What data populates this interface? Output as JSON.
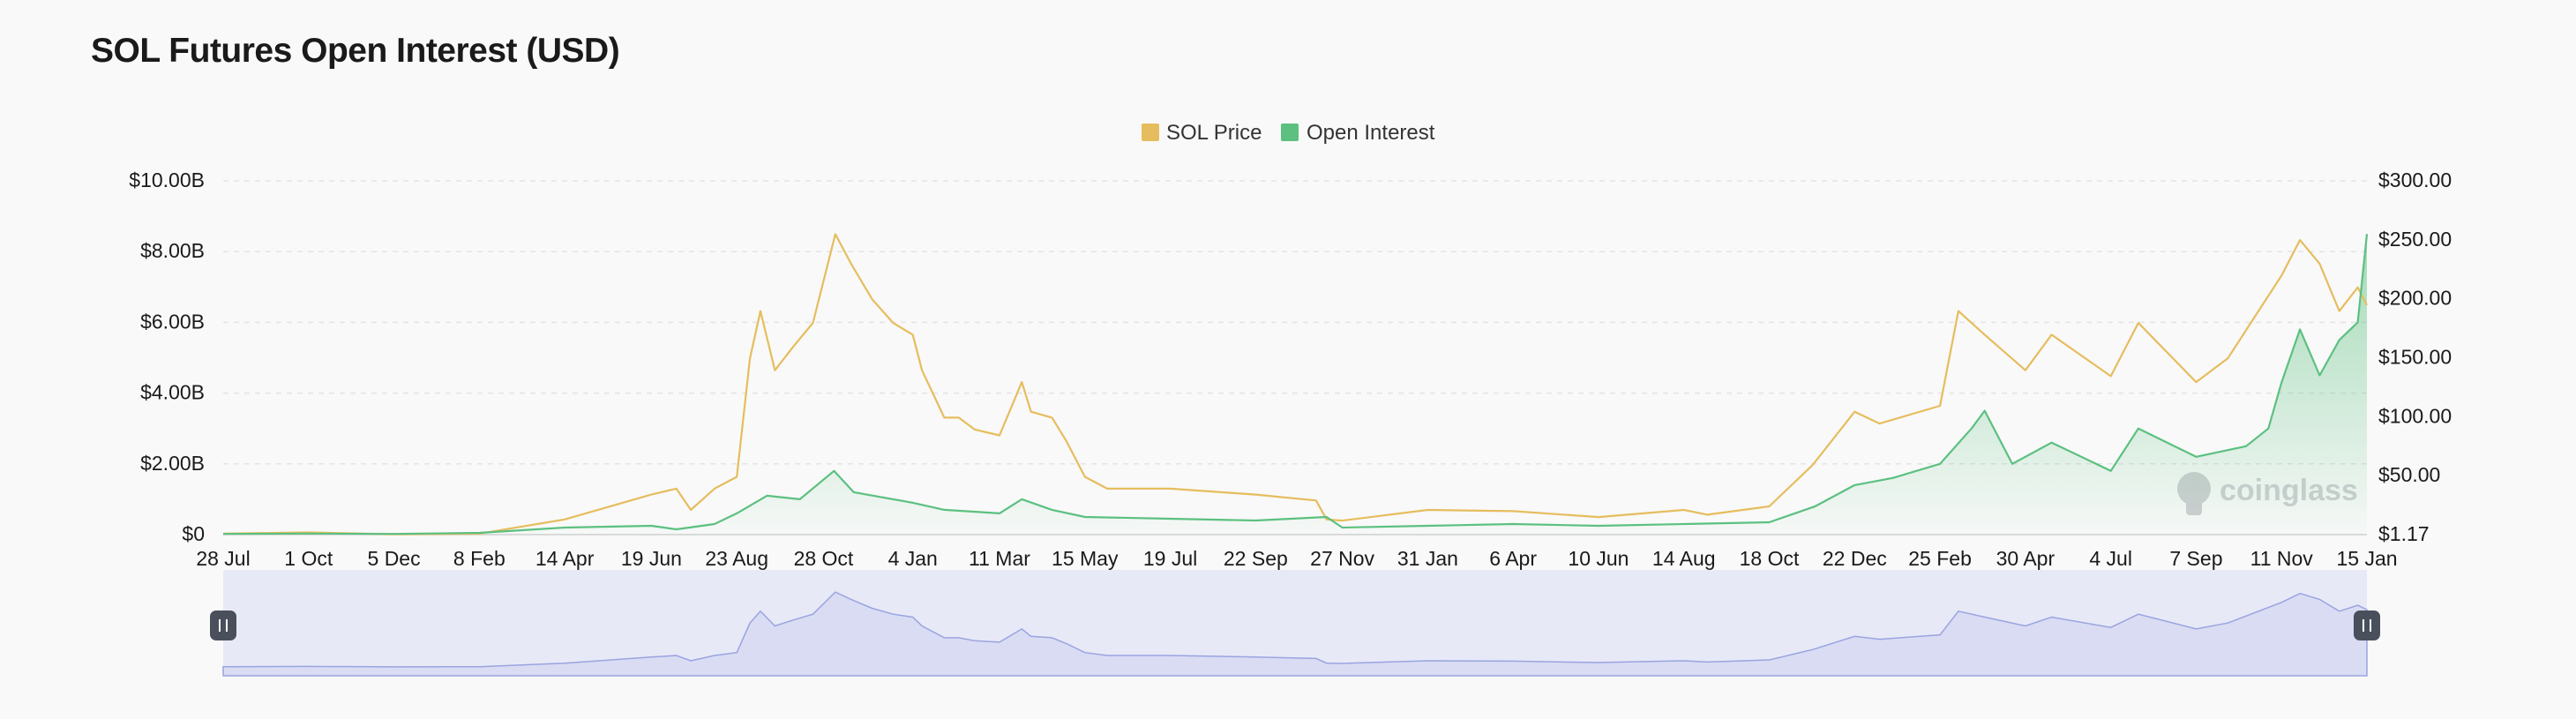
{
  "page": {
    "title": "SOL Futures Open Interest (USD)"
  },
  "watermark": {
    "text": "coinglass",
    "icon": "coinglass-logo-icon"
  },
  "colors": {
    "sol_price": "#e6bd5e",
    "open_interest": "#5cc080",
    "open_interest_fill": "#b5e7c7",
    "navigator_fill": "#d9dcf3",
    "navigator_line": "#9aa4e0",
    "navigator_bg": "#e8e9f7",
    "handle": "#4a4f5c"
  },
  "chart_data": {
    "type": "line",
    "title": "SOL Futures Open Interest (USD)",
    "legend": {
      "placement": "top-center",
      "items": [
        "SOL Price",
        "Open Interest"
      ]
    },
    "grid": true,
    "x_tick_labels": [
      "28 Jul",
      "1 Oct",
      "5 Dec",
      "8 Feb",
      "14 Apr",
      "19 Jun",
      "23 Aug",
      "28 Oct",
      "4 Jan",
      "11 Mar",
      "15 May",
      "19 Jul",
      "22 Sep",
      "27 Nov",
      "31 Jan",
      "6 Apr",
      "10 Jun",
      "14 Aug",
      "18 Oct",
      "22 Dec",
      "25 Feb",
      "30 Apr",
      "4 Jul",
      "7 Sep",
      "11 Nov",
      "15 Jan"
    ],
    "y_left": {
      "label": "",
      "ticks": [
        "$0",
        "$2.00B",
        "$4.00B",
        "$6.00B",
        "$8.00B",
        "$10.00B"
      ],
      "range": [
        0,
        10
      ]
    },
    "y_right": {
      "label": "",
      "ticks": [
        "$1.17",
        "$50.00",
        "$100.00",
        "$150.00",
        "$200.00",
        "$250.00",
        "$300.00"
      ],
      "range": [
        1.17,
        300
      ]
    },
    "series": [
      {
        "name": "SOL Price",
        "axis": "right",
        "unit": "USD",
        "points": [
          [
            "28 Jul",
            2
          ],
          [
            "1 Oct",
            3
          ],
          [
            "5 Dec",
            1.5
          ],
          [
            "8 Feb",
            2
          ],
          [
            "14 Apr",
            14
          ],
          [
            "19 Jun",
            35
          ],
          [
            "8 Jul",
            40
          ],
          [
            "19 Jul",
            22
          ],
          [
            "6 Aug",
            40
          ],
          [
            "23 Aug",
            50
          ],
          [
            "2 Sep",
            150
          ],
          [
            "10 Sep",
            190
          ],
          [
            "21 Sep",
            140
          ],
          [
            "5 Oct",
            160
          ],
          [
            "20 Oct",
            180
          ],
          [
            "6 Nov",
            255
          ],
          [
            "18 Nov",
            230
          ],
          [
            "4 Dec",
            200
          ],
          [
            "20 Dec",
            180
          ],
          [
            "4 Jan",
            170
          ],
          [
            "11 Jan",
            140
          ],
          [
            "28 Jan",
            100
          ],
          [
            "8 Feb",
            100
          ],
          [
            "20 Feb",
            90
          ],
          [
            "11 Mar",
            85
          ],
          [
            "28 Mar",
            130
          ],
          [
            "4 Apr",
            105
          ],
          [
            "20 Apr",
            100
          ],
          [
            "1 May",
            80
          ],
          [
            "15 May",
            50
          ],
          [
            "1 Jun",
            40
          ],
          [
            "19 Jul",
            40
          ],
          [
            "22 Sep",
            35
          ],
          [
            "7 Nov",
            30
          ],
          [
            "15 Nov",
            14
          ],
          [
            "27 Nov",
            13
          ],
          [
            "31 Jan",
            22
          ],
          [
            "6 Apr",
            21
          ],
          [
            "10 Jun",
            16
          ],
          [
            "14 Aug",
            22
          ],
          [
            "1 Sep",
            18
          ],
          [
            "18 Oct",
            25
          ],
          [
            "20 Nov",
            60
          ],
          [
            "22 Dec",
            105
          ],
          [
            "10 Jan",
            95
          ],
          [
            "25 Feb",
            110
          ],
          [
            "10 Mar",
            190
          ],
          [
            "30 Mar",
            170
          ],
          [
            "30 Apr",
            140
          ],
          [
            "20 May",
            170
          ],
          [
            "4 Jul",
            135
          ],
          [
            "25 Jul",
            180
          ],
          [
            "7 Sep",
            130
          ],
          [
            "1 Oct",
            150
          ],
          [
            "11 Nov",
            220
          ],
          [
            "25 Nov",
            250
          ],
          [
            "10 Dec",
            230
          ],
          [
            "25 Dec",
            190
          ],
          [
            "8 Jan",
            210
          ],
          [
            "15 Jan",
            195
          ]
        ]
      },
      {
        "name": "Open Interest",
        "axis": "left",
        "unit": "USD billions",
        "points": [
          [
            "28 Jul",
            0.02
          ],
          [
            "1 Oct",
            0.03
          ],
          [
            "5 Dec",
            0.02
          ],
          [
            "8 Feb",
            0.05
          ],
          [
            "14 Apr",
            0.2
          ],
          [
            "19 Jun",
            0.25
          ],
          [
            "8 Jul",
            0.15
          ],
          [
            "6 Aug",
            0.3
          ],
          [
            "23 Aug",
            0.6
          ],
          [
            "15 Sep",
            1.1
          ],
          [
            "10 Oct",
            1.0
          ],
          [
            "5 Nov",
            1.8
          ],
          [
            "20 Nov",
            1.2
          ],
          [
            "4 Jan",
            0.9
          ],
          [
            "28 Jan",
            0.7
          ],
          [
            "11 Mar",
            0.6
          ],
          [
            "28 Mar",
            1.0
          ],
          [
            "20 Apr",
            0.7
          ],
          [
            "15 May",
            0.5
          ],
          [
            "19 Jul",
            0.45
          ],
          [
            "22 Sep",
            0.4
          ],
          [
            "15 Nov",
            0.5
          ],
          [
            "27 Nov",
            0.2
          ],
          [
            "31 Jan",
            0.25
          ],
          [
            "6 Apr",
            0.3
          ],
          [
            "10 Jun",
            0.25
          ],
          [
            "14 Aug",
            0.3
          ],
          [
            "18 Oct",
            0.35
          ],
          [
            "22 Nov",
            0.8
          ],
          [
            "22 Dec",
            1.4
          ],
          [
            "20 Jan",
            1.6
          ],
          [
            "25 Feb",
            2.0
          ],
          [
            "20 Mar",
            3.0
          ],
          [
            "30 Mar",
            3.5
          ],
          [
            "20 Apr",
            2.0
          ],
          [
            "20 May",
            2.6
          ],
          [
            "4 Jul",
            1.8
          ],
          [
            "25 Jul",
            3.0
          ],
          [
            "7 Sep",
            2.2
          ],
          [
            "15 Oct",
            2.5
          ],
          [
            "1 Nov",
            3.0
          ],
          [
            "11 Nov",
            4.3
          ],
          [
            "25 Nov",
            5.8
          ],
          [
            "10 Dec",
            4.5
          ],
          [
            "25 Dec",
            5.5
          ],
          [
            "8 Jan",
            6.0
          ],
          [
            "15 Jan",
            8.5
          ]
        ]
      }
    ]
  }
}
